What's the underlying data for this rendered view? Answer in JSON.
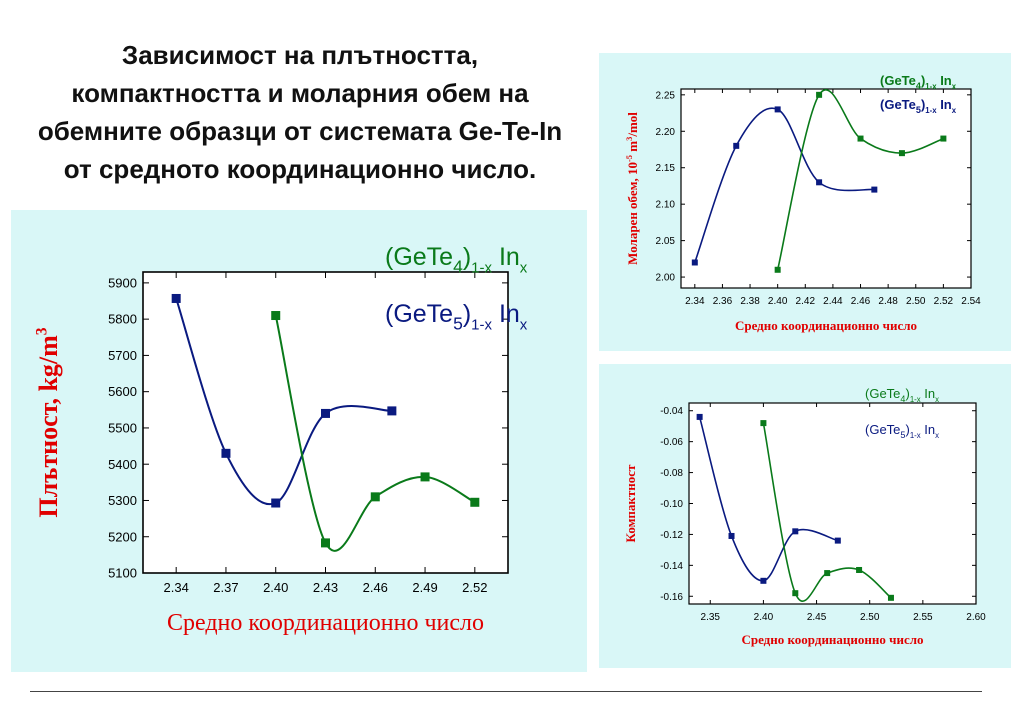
{
  "slide": {
    "title_lines": [
      "Зависимост на плътността,",
      "компактността и моларния обем на",
      "обемните образци от системата Ge-Te-In",
      "от средното координационно число."
    ]
  },
  "colors": {
    "series1": "#0a1a80",
    "series2": "#0a7a1a",
    "axis_label": "#e00000",
    "panel_bg": "#d9f7f7"
  },
  "chart_data": [
    {
      "type": "line",
      "xlabel": "Средно координационно число",
      "ylabel": "Плътност, kg/m",
      "ylabel_sup": "3",
      "xticks": [
        "2.34",
        "2.37",
        "2.40",
        "2.43",
        "2.46",
        "2.49",
        "2.52"
      ],
      "yticks": [
        "5900",
        "5800",
        "5700",
        "5600",
        "5500",
        "5400",
        "5300",
        "5200",
        "5100"
      ],
      "xlim": [
        2.32,
        2.54
      ],
      "ylim": [
        5100,
        5930
      ],
      "legend": [
        {
          "base": "(GeTe",
          "sub1": "4",
          "mid": ")",
          "sub2": "1-x",
          "tail": " In",
          "sub3": "x",
          "color": "#0a7a1a"
        },
        {
          "base": "(GeTe",
          "sub1": "5",
          "mid": ")",
          "sub2": "1-x",
          "tail": " In",
          "sub3": "x",
          "color": "#0a1a80"
        }
      ],
      "series": [
        {
          "color": "#0a1a80",
          "x": [
            2.34,
            2.37,
            2.4,
            2.43,
            2.47
          ],
          "y": [
            5857,
            5430,
            5293,
            5540,
            5547
          ]
        },
        {
          "color": "#0a7a1a",
          "x": [
            2.4,
            2.43,
            2.46,
            2.49,
            2.52
          ],
          "y": [
            5810,
            5183,
            5310,
            5365,
            5295
          ]
        }
      ]
    },
    {
      "type": "line",
      "xlabel": "Средно координационно число",
      "ylabel": "Моларен обем, 10",
      "ylabel_sup1": "-5",
      "ylabel_mid": " m",
      "ylabel_sup2": "3",
      "ylabel_tail": "/mol",
      "xticks": [
        "2.34",
        "2.36",
        "2.38",
        "2.40",
        "2.42",
        "2.44",
        "2.46",
        "2.48",
        "2.50",
        "2.52",
        "2.54"
      ],
      "yticks": [
        "2.25",
        "2.20",
        "2.15",
        "2.10",
        "2.05",
        "2.00"
      ],
      "xlim": [
        2.33,
        2.54
      ],
      "ylim": [
        1.985,
        2.258
      ],
      "legend": [
        {
          "base": "(GeTe",
          "sub1": "4",
          "mid": ")",
          "sub2": "1-x",
          "tail": " In",
          "sub3": "x",
          "color": "#0a7a1a"
        },
        {
          "base": "(GeTe",
          "sub1": "5",
          "mid": ")",
          "sub2": "1-x",
          "tail": " In",
          "sub3": "x",
          "color": "#0a1a80"
        }
      ],
      "series": [
        {
          "color": "#0a1a80",
          "x": [
            2.34,
            2.37,
            2.4,
            2.43,
            2.47
          ],
          "y": [
            2.02,
            2.18,
            2.23,
            2.13,
            2.12
          ]
        },
        {
          "color": "#0a7a1a",
          "x": [
            2.4,
            2.43,
            2.46,
            2.49,
            2.52
          ],
          "y": [
            2.01,
            2.25,
            2.19,
            2.17,
            2.19
          ]
        }
      ]
    },
    {
      "type": "line",
      "xlabel": "Средно координационно число",
      "ylabel": "Компактност",
      "xticks": [
        "2.35",
        "2.40",
        "2.45",
        "2.50",
        "2.55",
        "2.60"
      ],
      "yticks": [
        "-0.04",
        "-0.06",
        "-0.08",
        "-0.10",
        "-0.12",
        "-0.14",
        "-0.16"
      ],
      "xlim": [
        2.33,
        2.6
      ],
      "ylim": [
        -0.165,
        -0.035
      ],
      "legend": [
        {
          "base": "(GeTe",
          "sub1": "4",
          "mid": ")",
          "sub2": "1-x",
          "tail": " In",
          "sub3": "x",
          "color": "#0a7a1a"
        },
        {
          "base": "(GeTe",
          "sub1": "5",
          "mid": ")",
          "sub2": "1-x",
          "tail": " In",
          "sub3": "x",
          "color": "#0a1a80"
        }
      ],
      "series": [
        {
          "color": "#0a1a80",
          "x": [
            2.34,
            2.37,
            2.4,
            2.43,
            2.47
          ],
          "y": [
            -0.044,
            -0.121,
            -0.15,
            -0.118,
            -0.124
          ]
        },
        {
          "color": "#0a7a1a",
          "x": [
            2.4,
            2.43,
            2.46,
            2.49,
            2.52
          ],
          "y": [
            -0.048,
            -0.158,
            -0.145,
            -0.143,
            -0.161
          ]
        }
      ]
    }
  ]
}
